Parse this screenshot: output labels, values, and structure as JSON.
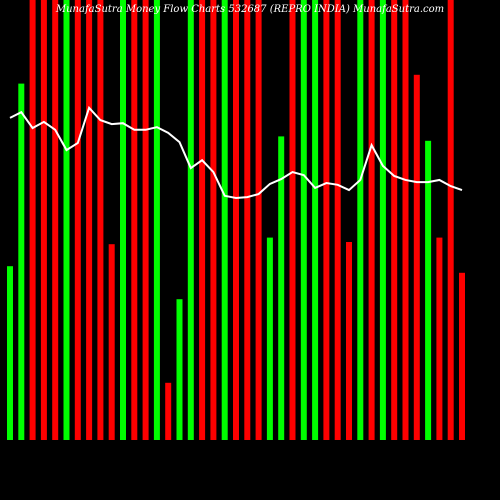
{
  "chart_data": {
    "type": "bar",
    "title": "MunafaSutra Money Flow Charts 532687 (REPRO INDIA) MunafaSutra.com",
    "categories": [
      null,
      null,
      null,
      null,
      null,
      null,
      null,
      null,
      null,
      null,
      null,
      null,
      null,
      null,
      null,
      null,
      null,
      null,
      null,
      null,
      null,
      null,
      null,
      null,
      null,
      null,
      null,
      null,
      null,
      null,
      null,
      null,
      null,
      null,
      null,
      null,
      null,
      null,
      null,
      null,
      null
    ],
    "values": [
      39.5,
      81,
      100,
      100,
      100,
      100,
      100,
      100,
      100,
      44.5,
      100,
      100,
      100,
      100,
      13,
      32,
      100,
      100,
      100,
      100,
      100,
      100,
      100,
      46,
      69,
      100,
      100,
      100,
      100,
      100,
      45,
      100,
      100,
      100,
      100,
      100,
      83,
      68,
      46,
      100,
      38
    ],
    "colors": [
      "#00ff00",
      "#00ff00",
      "#ff0000",
      "#ff0000",
      "#ff0000",
      "#00ff00",
      "#ff0000",
      "#ff0000",
      "#ff0000",
      "#ff0000",
      "#00ff00",
      "#ff0000",
      "#ff0000",
      "#00ff00",
      "#ff0000",
      "#00ff00",
      "#00ff00",
      "#ff0000",
      "#ff0000",
      "#00ff00",
      "#ff0000",
      "#ff0000",
      "#ff0000",
      "#00ff00",
      "#00ff00",
      "#ff0000",
      "#00ff00",
      "#00ff00",
      "#ff0000",
      "#ff0000",
      "#ff0000",
      "#00ff00",
      "#ff0000",
      "#00ff00",
      "#ff0000",
      "#ff0000",
      "#ff0000",
      "#00ff00",
      "#ff0000",
      "#ff0000",
      "#ff0000"
    ],
    "line_values": [
      73.2,
      74.5,
      70.9,
      72.3,
      70.5,
      65.9,
      67.5,
      75.5,
      72.7,
      71.8,
      72,
      70.5,
      70.5,
      71.1,
      69.8,
      67.7,
      61.8,
      63.6,
      60.9,
      55.5,
      55,
      55.2,
      55.9,
      58.2,
      59.3,
      60.9,
      60.2,
      57.3,
      58.4,
      58,
      56.8,
      59.1,
      67,
      62.3,
      60,
      59.1,
      58.6,
      58.6,
      59.1,
      57.7,
      56.8
    ],
    "line_color": "#ffffff",
    "ylim": [
      0,
      100
    ]
  }
}
